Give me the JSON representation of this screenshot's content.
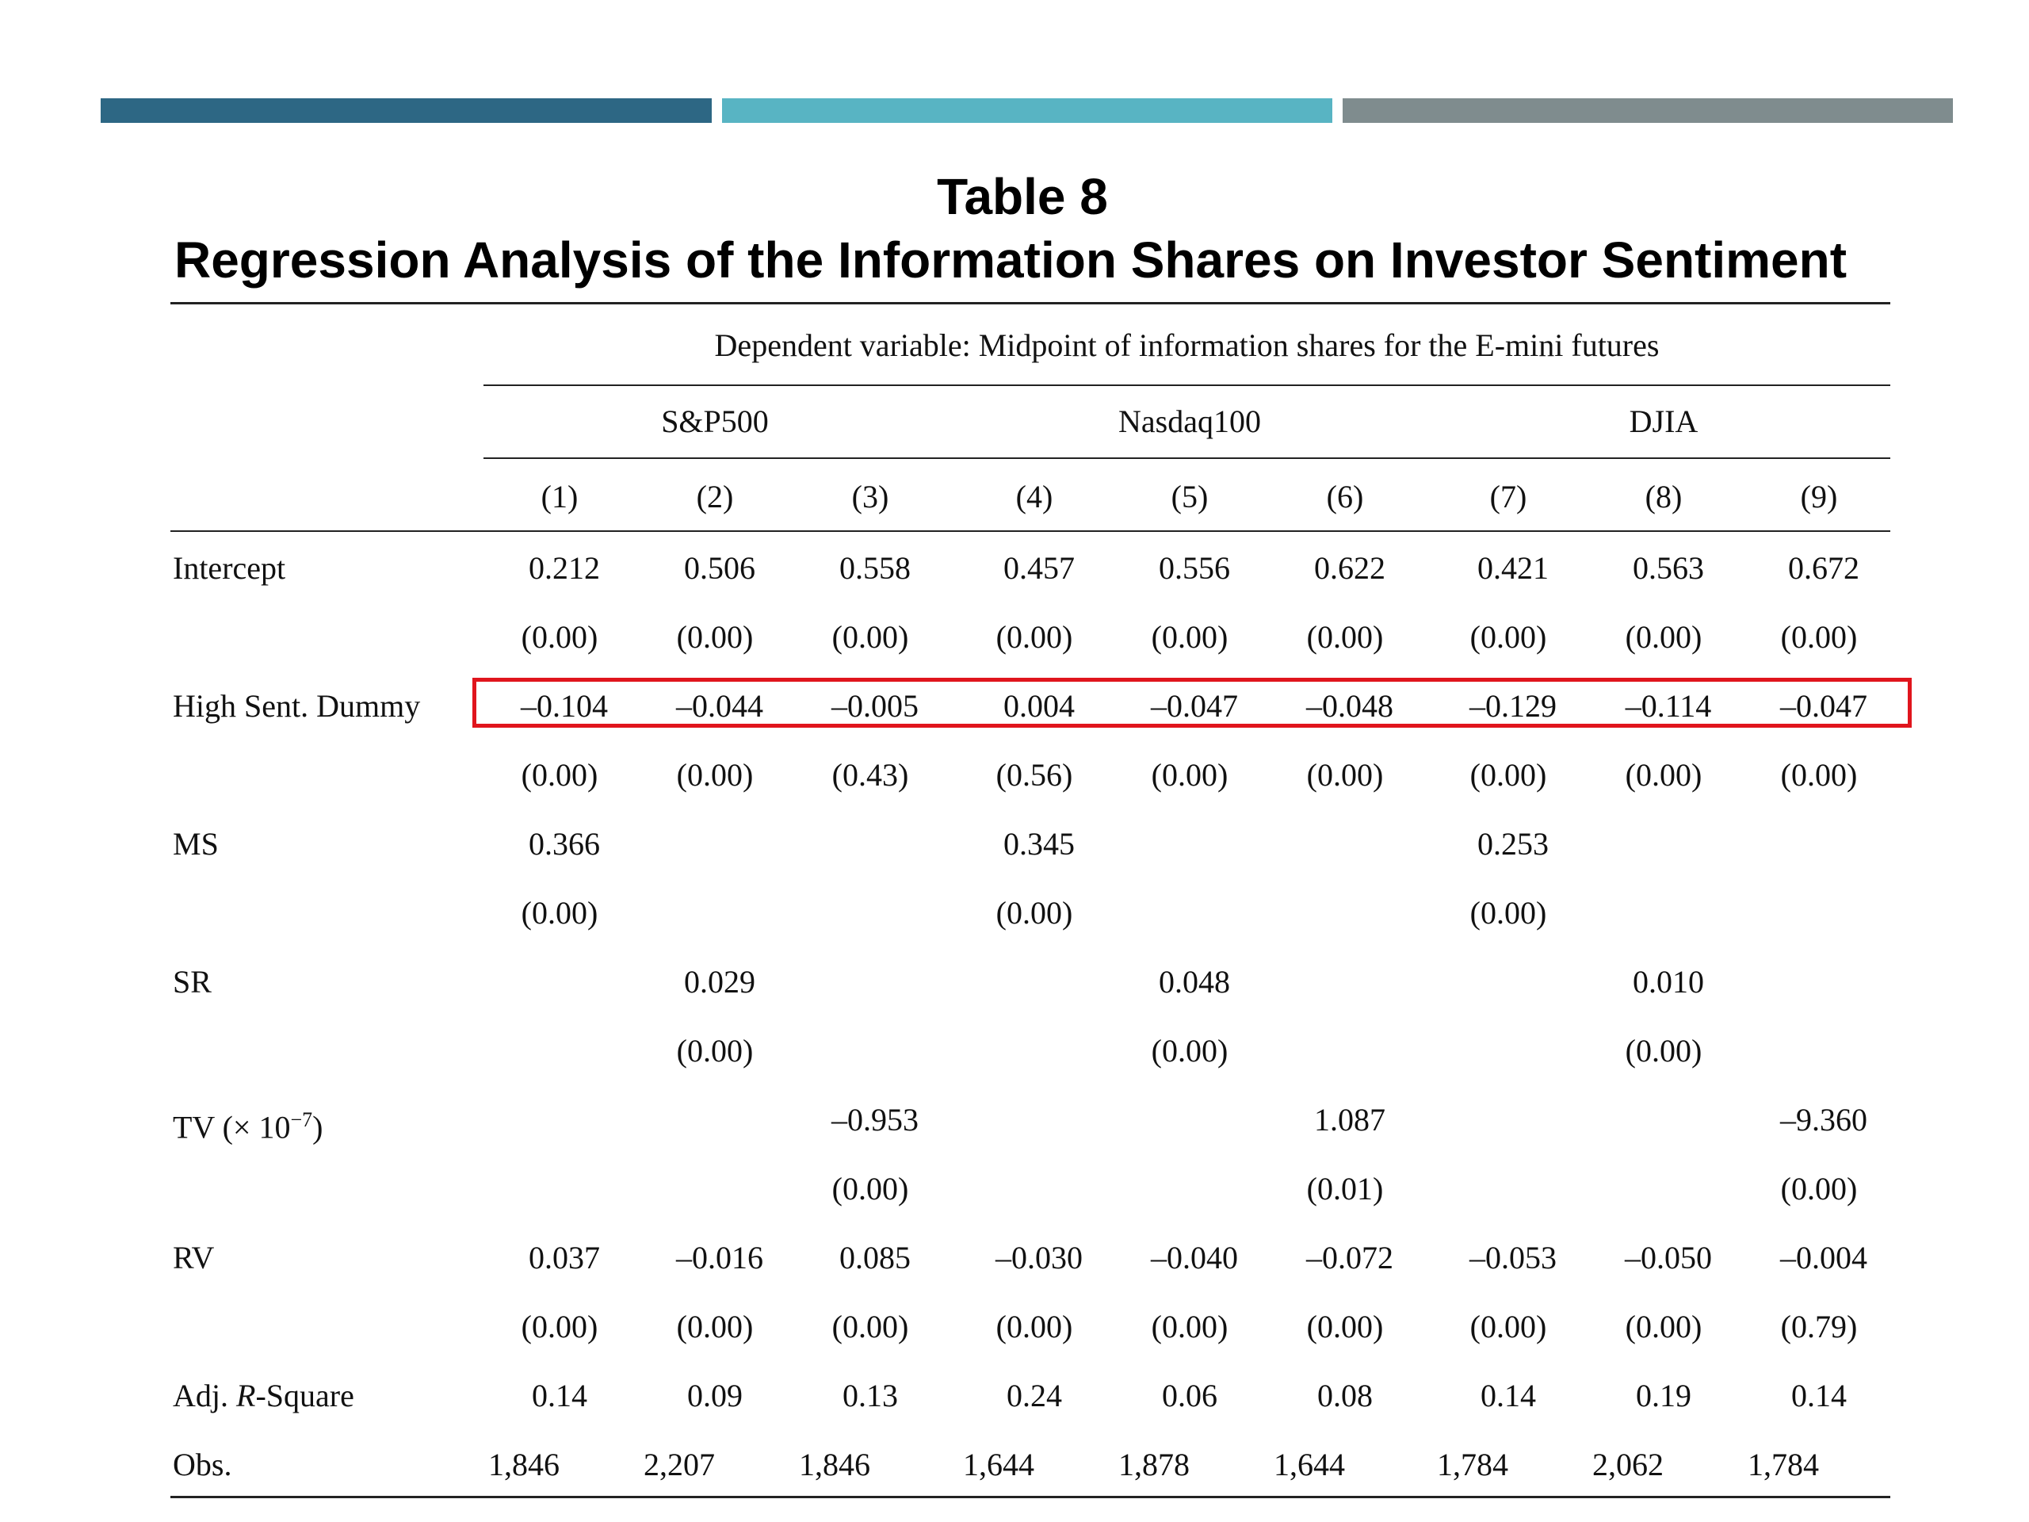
{
  "colors": {
    "bar_1": "#2d6784",
    "bar_2": "#58b4c3",
    "bar_3": "#7f8c8e",
    "highlight": "#e0151d"
  },
  "title": {
    "line1": "Table 8",
    "line2": "Regression Analysis of the Information Shares on Investor Sentiment"
  },
  "table": {
    "dependent_variable": "Dependent variable: Midpoint of information shares for the E-mini futures",
    "groups": [
      "S&P500",
      "Nasdaq100",
      "DJIA"
    ],
    "columns": [
      "(1)",
      "(2)",
      "(3)",
      "(4)",
      "(5)",
      "(6)",
      "(7)",
      "(8)",
      "(9)"
    ],
    "rows": [
      {
        "label": "Intercept",
        "values": [
          "0.212",
          "0.506",
          "0.558",
          "0.457",
          "0.556",
          "0.622",
          "0.421",
          "0.563",
          "0.672"
        ],
        "pvalues": [
          "(0.00)",
          "(0.00)",
          "(0.00)",
          "(0.00)",
          "(0.00)",
          "(0.00)",
          "(0.00)",
          "(0.00)",
          "(0.00)"
        ]
      },
      {
        "label": "High Sent. Dummy",
        "highlighted": true,
        "values": [
          "–0.104",
          "–0.044",
          "–0.005",
          "0.004",
          "–0.047",
          "–0.048",
          "–0.129",
          "–0.114",
          "–0.047"
        ],
        "pvalues": [
          "(0.00)",
          "(0.00)",
          "(0.43)",
          "(0.56)",
          "(0.00)",
          "(0.00)",
          "(0.00)",
          "(0.00)",
          "(0.00)"
        ]
      },
      {
        "label": "MS",
        "values": [
          "0.366",
          "",
          "",
          "0.345",
          "",
          "",
          "0.253",
          "",
          ""
        ],
        "pvalues": [
          "(0.00)",
          "",
          "",
          "(0.00)",
          "",
          "",
          "(0.00)",
          "",
          ""
        ]
      },
      {
        "label": "SR",
        "values": [
          "",
          "0.029",
          "",
          "",
          "0.048",
          "",
          "",
          "0.010",
          ""
        ],
        "pvalues": [
          "",
          "(0.00)",
          "",
          "",
          "(0.00)",
          "",
          "",
          "(0.00)",
          ""
        ]
      },
      {
        "label": "TV",
        "label_scale_base": "(× 10",
        "label_scale_exp": "−7",
        "label_scale_close": ")",
        "values": [
          "",
          "",
          "–0.953",
          "",
          "",
          "1.087",
          "",
          "",
          "–9.360"
        ],
        "pvalues": [
          "",
          "",
          "(0.00)",
          "",
          "",
          "(0.01)",
          "",
          "",
          "(0.00)"
        ]
      },
      {
        "label": "RV",
        "values": [
          "0.037",
          "–0.016",
          "0.085",
          "–0.030",
          "–0.040",
          "–0.072",
          "–0.053",
          "–0.050",
          "–0.004"
        ],
        "pvalues": [
          "(0.00)",
          "(0.00)",
          "(0.00)",
          "(0.00)",
          "(0.00)",
          "(0.00)",
          "(0.00)",
          "(0.00)",
          "(0.79)"
        ]
      }
    ],
    "adj_r_square": {
      "label_prefix": "Adj. ",
      "label_italic": "R",
      "label_suffix": "-Square",
      "values": [
        "0.14",
        "0.09",
        "0.13",
        "0.24",
        "0.06",
        "0.08",
        "0.14",
        "0.19",
        "0.14"
      ]
    },
    "obs": {
      "label": "Obs.",
      "values": [
        "1,846",
        "2,207",
        "1,846",
        "1,644",
        "1,878",
        "1,644",
        "1,784",
        "2,062",
        "1,784"
      ]
    }
  }
}
